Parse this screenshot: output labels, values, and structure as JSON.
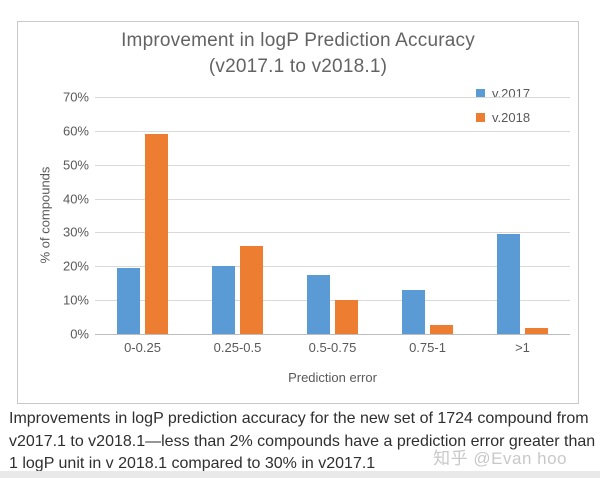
{
  "chart_data": {
    "type": "bar",
    "title": "Improvement in logP Prediction Accuracy",
    "subtitle": "(v2017.1 to v2018.1)",
    "categories": [
      "0-0.25",
      "0.25-0.5",
      "0.5-0.75",
      "0.75-1",
      ">1"
    ],
    "series": [
      {
        "name": "v.2017",
        "color": "#5B9BD5",
        "values": [
          19.5,
          20,
          17.5,
          13,
          29.5
        ]
      },
      {
        "name": "v.2018",
        "color": "#ED7D31",
        "values": [
          59,
          26,
          10,
          2.7,
          1.8
        ]
      }
    ],
    "xlabel": "Prediction error",
    "ylabel": "% of compounds",
    "ylim": [
      0,
      70
    ],
    "grid": true,
    "legend_position": "top-right",
    "yticks": [
      {
        "value": 0,
        "label": "0%"
      },
      {
        "value": 10,
        "label": "10%"
      },
      {
        "value": 20,
        "label": "20%"
      },
      {
        "value": 30,
        "label": "30%"
      },
      {
        "value": 40,
        "label": "40%"
      },
      {
        "value": 50,
        "label": "50%"
      },
      {
        "value": 60,
        "label": "60%"
      },
      {
        "value": 70,
        "label": "70%"
      }
    ]
  },
  "caption": {
    "lines": [
      "Improvements in logP prediction accuracy for the new set of 1724 compound from",
      "v2017.1 to v2018.1—less than 2% compounds have a prediction error greater than",
      "1 logP unit in v 2018.1 compared to 30% in v2017.1"
    ]
  },
  "watermark": {
    "text": "知乎 @Evan hoo"
  }
}
